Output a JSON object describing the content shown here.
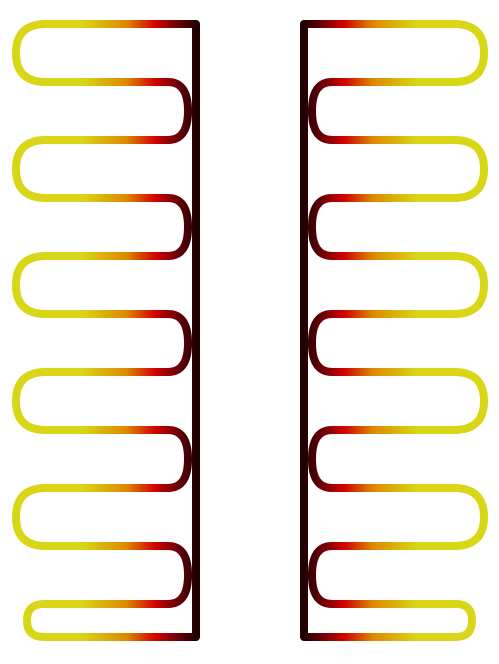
{
  "figure": {
    "kind": "serpentine-heat-gradient-tubes",
    "colors": {
      "background": "#ffffff",
      "hot": "#200000",
      "mid_dark": "#6b0008",
      "red": "#d10000",
      "orange": "#dc8a00",
      "yellow": "#d8d617"
    }
  }
}
